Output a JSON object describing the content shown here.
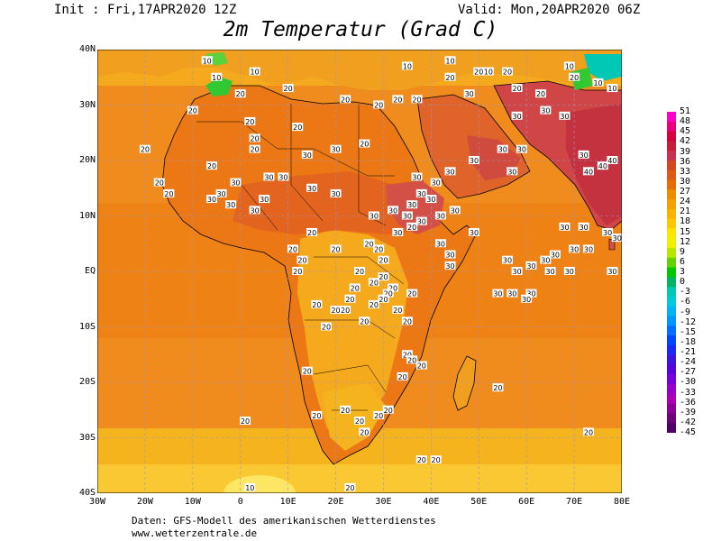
{
  "header": {
    "init": "Init : Fri,17APR2020 12Z",
    "valid": "Valid: Mon,20APR2020 06Z",
    "title": "2m Temperatur (Grad C)"
  },
  "axes": {
    "lat_labels": [
      "40N",
      "30N",
      "20N",
      "10N",
      "EQ",
      "10S",
      "20S",
      "30S",
      "40S"
    ],
    "lon_labels": [
      "30W",
      "20W",
      "10W",
      "0",
      "10E",
      "20E",
      "30E",
      "40E",
      "50E",
      "60E",
      "70E",
      "80E"
    ]
  },
  "extent": {
    "lon_min": -30,
    "lon_max": 80,
    "lat_min": -40,
    "lat_max": 40
  },
  "colorbar": {
    "labels": [
      "51",
      "48",
      "45",
      "42",
      "39",
      "36",
      "33",
      "30",
      "27",
      "24",
      "21",
      "18",
      "15",
      "12",
      "9",
      "6",
      "3",
      "0",
      "-3",
      "-6",
      "-9",
      "-12",
      "-15",
      "-18",
      "-21",
      "-24",
      "-27",
      "-30",
      "-33",
      "-36",
      "-39",
      "-42",
      "-45"
    ],
    "colors": [
      "#ff00c8",
      "#e8007a",
      "#d4003a",
      "#c41e3a",
      "#c83250",
      "#d24820",
      "#dc5a14",
      "#e66e0a",
      "#ee8c00",
      "#f4a000",
      "#f8b400",
      "#fcc800",
      "#fce600",
      "#f0f000",
      "#b4e600",
      "#64d200",
      "#00c800",
      "#00b464",
      "#00c8b4",
      "#00c8dc",
      "#00b4f0",
      "#0096ff",
      "#006eff",
      "#0046ff",
      "#1e28f0",
      "#3c14dc",
      "#5a00dc",
      "#7800dc",
      "#9600c8",
      "#aa00b4",
      "#8c0096",
      "#6e0078",
      "#500064"
    ]
  },
  "field_colors": {
    "sea_warm": "#f08c1e",
    "sea_mild": "#f5aa1e",
    "land_hot": "#eb7814",
    "land_veryhot": "#dc5a32",
    "land_mild": "#f5b41e",
    "land_cool": "#fac832",
    "cold": "#32c832",
    "veryhot": "#c8324b"
  },
  "map_labels": [
    {
      "t": "10",
      "lon": -7,
      "lat": 38
    },
    {
      "t": "10",
      "lon": -5,
      "lat": 35
    },
    {
      "t": "10",
      "lon": 3,
      "lat": 36
    },
    {
      "t": "20",
      "lon": 10,
      "lat": 33
    },
    {
      "t": "20",
      "lon": 0,
      "lat": 32
    },
    {
      "t": "20",
      "lon": -10,
      "lat": 29
    },
    {
      "t": "20",
      "lon": 2,
      "lat": 27
    },
    {
      "t": "20",
      "lon": 12,
      "lat": 26
    },
    {
      "t": "20",
      "lon": 22,
      "lat": 31
    },
    {
      "t": "20",
      "lon": 29,
      "lat": 30
    },
    {
      "t": "20",
      "lon": 33,
      "lat": 31
    },
    {
      "t": "20",
      "lon": 37,
      "lat": 31
    },
    {
      "t": "10",
      "lon": 35,
      "lat": 37
    },
    {
      "t": "10",
      "lon": 44,
      "lat": 38
    },
    {
      "t": "20",
      "lon": 44,
      "lat": 35
    },
    {
      "t": "20",
      "lon": 50,
      "lat": 36
    },
    {
      "t": "10",
      "lon": 52,
      "lat": 36
    },
    {
      "t": "20",
      "lon": 56,
      "lat": 36
    },
    {
      "t": "20",
      "lon": 58,
      "lat": 33
    },
    {
      "t": "20",
      "lon": 63,
      "lat": 32
    },
    {
      "t": "10",
      "lon": 69,
      "lat": 37
    },
    {
      "t": "20",
      "lon": 70,
      "lat": 35
    },
    {
      "t": "10",
      "lon": 75,
      "lat": 34
    },
    {
      "t": "10",
      "lon": 78,
      "lat": 33
    },
    {
      "t": "30",
      "lon": 48,
      "lat": 32
    },
    {
      "t": "30",
      "lon": 58,
      "lat": 28
    },
    {
      "t": "30",
      "lon": 64,
      "lat": 29
    },
    {
      "t": "30",
      "lon": 68,
      "lat": 28
    },
    {
      "t": "30",
      "lon": 55,
      "lat": 22
    },
    {
      "t": "30",
      "lon": 59,
      "lat": 22
    },
    {
      "t": "30",
      "lon": 49,
      "lat": 20
    },
    {
      "t": "30",
      "lon": 57,
      "lat": 18
    },
    {
      "t": "30",
      "lon": 72,
      "lat": 21
    },
    {
      "t": "40",
      "lon": 76,
      "lat": 19
    },
    {
      "t": "40",
      "lon": 73,
      "lat": 18
    },
    {
      "t": "40",
      "lon": 78,
      "lat": 20
    },
    {
      "t": "20",
      "lon": -20,
      "lat": 22
    },
    {
      "t": "20",
      "lon": -17,
      "lat": 16
    },
    {
      "t": "20",
      "lon": -15,
      "lat": 14
    },
    {
      "t": "20",
      "lon": -6,
      "lat": 19
    },
    {
      "t": "20",
      "lon": 3,
      "lat": 22
    },
    {
      "t": "20",
      "lon": 3,
      "lat": 24
    },
    {
      "t": "30",
      "lon": 14,
      "lat": 21
    },
    {
      "t": "30",
      "lon": 20,
      "lat": 22
    },
    {
      "t": "20",
      "lon": 26,
      "lat": 23
    },
    {
      "t": "30",
      "lon": -1,
      "lat": 16
    },
    {
      "t": "30",
      "lon": 6,
      "lat": 17
    },
    {
      "t": "30",
      "lon": 9,
      "lat": 17
    },
    {
      "t": "30",
      "lon": 15,
      "lat": 15
    },
    {
      "t": "30",
      "lon": -4,
      "lat": 14
    },
    {
      "t": "30",
      "lon": -6,
      "lat": 13
    },
    {
      "t": "30",
      "lon": -2,
      "lat": 12
    },
    {
      "t": "30",
      "lon": 3,
      "lat": 11
    },
    {
      "t": "30",
      "lon": 5,
      "lat": 13
    },
    {
      "t": "30",
      "lon": 20,
      "lat": 14
    },
    {
      "t": "30",
      "lon": 28,
      "lat": 10
    },
    {
      "t": "30",
      "lon": 32,
      "lat": 11
    },
    {
      "t": "30",
      "lon": 36,
      "lat": 12
    },
    {
      "t": "30",
      "lon": 38,
      "lat": 14
    },
    {
      "t": "30",
      "lon": 40,
      "lat": 13
    },
    {
      "t": "30",
      "lon": 35,
      "lat": 10
    },
    {
      "t": "30",
      "lon": 38,
      "lat": 9
    },
    {
      "t": "30",
      "lon": 42,
      "lat": 10
    },
    {
      "t": "30",
      "lon": 45,
      "lat": 11
    },
    {
      "t": "30",
      "lon": 37,
      "lat": 17
    },
    {
      "t": "30",
      "lon": 41,
      "lat": 16
    },
    {
      "t": "30",
      "lon": 44,
      "lat": 18
    },
    {
      "t": "30",
      "lon": 33,
      "lat": 7
    },
    {
      "t": "20",
      "lon": 36,
      "lat": 8
    },
    {
      "t": "30",
      "lon": 42,
      "lat": 5
    },
    {
      "t": "30",
      "lon": 44,
      "lat": 3
    },
    {
      "t": "30",
      "lon": 44,
      "lat": 1
    },
    {
      "t": "30",
      "lon": 49,
      "lat": 7
    },
    {
      "t": "20",
      "lon": 15,
      "lat": 7
    },
    {
      "t": "20",
      "lon": 11,
      "lat": 4
    },
    {
      "t": "20",
      "lon": 13,
      "lat": 2
    },
    {
      "t": "20",
      "lon": 12,
      "lat": 0
    },
    {
      "t": "20",
      "lon": 20,
      "lat": 4
    },
    {
      "t": "20",
      "lon": 27,
      "lat": 5
    },
    {
      "t": "20",
      "lon": 29,
      "lat": 4
    },
    {
      "t": "20",
      "lon": 30,
      "lat": 2
    },
    {
      "t": "20",
      "lon": 25,
      "lat": 0
    },
    {
      "t": "20",
      "lon": 28,
      "lat": -2
    },
    {
      "t": "20",
      "lon": 30,
      "lat": -1
    },
    {
      "t": "20",
      "lon": 32,
      "lat": -3
    },
    {
      "t": "20",
      "lon": 31,
      "lat": -4
    },
    {
      "t": "20",
      "lon": 36,
      "lat": -4
    },
    {
      "t": "20",
      "lon": 24,
      "lat": -3
    },
    {
      "t": "20",
      "lon": 23,
      "lat": -5
    },
    {
      "t": "20",
      "lon": 22,
      "lat": -7
    },
    {
      "t": "20",
      "lon": 20,
      "lat": -7
    },
    {
      "t": "20",
      "lon": 16,
      "lat": -6
    },
    {
      "t": "20",
      "lon": 30,
      "lat": -5
    },
    {
      "t": "20",
      "lon": 28,
      "lat": -6
    },
    {
      "t": "20",
      "lon": 33,
      "lat": -7
    },
    {
      "t": "20",
      "lon": 18,
      "lat": -10
    },
    {
      "t": "20",
      "lon": 26,
      "lat": -9
    },
    {
      "t": "20",
      "lon": 35,
      "lat": -9
    },
    {
      "t": "20",
      "lon": 14,
      "lat": -18
    },
    {
      "t": "20",
      "lon": 35,
      "lat": -15
    },
    {
      "t": "20",
      "lon": 36,
      "lat": -16
    },
    {
      "t": "20",
      "lon": 38,
      "lat": -17
    },
    {
      "t": "20",
      "lon": 34,
      "lat": -19
    },
    {
      "t": "20",
      "lon": 16,
      "lat": -26
    },
    {
      "t": "20",
      "lon": 22,
      "lat": -25
    },
    {
      "t": "20",
      "lon": 25,
      "lat": -27
    },
    {
      "t": "20",
      "lon": 29,
      "lat": -26
    },
    {
      "t": "20",
      "lon": 31,
      "lat": -25
    },
    {
      "t": "20",
      "lon": 26,
      "lat": -29
    },
    {
      "t": "20",
      "lon": 23,
      "lat": -39
    },
    {
      "t": "20",
      "lon": 38,
      "lat": -34
    },
    {
      "t": "20",
      "lon": 41,
      "lat": -34
    },
    {
      "t": "20",
      "lon": 1,
      "lat": -27
    },
    {
      "t": "10",
      "lon": 2,
      "lat": -39
    },
    {
      "t": "20",
      "lon": 54,
      "lat": -21
    },
    {
      "t": "20",
      "lon": 73,
      "lat": -29
    },
    {
      "t": "30",
      "lon": 61,
      "lat": 1
    },
    {
      "t": "30",
      "lon": 64,
      "lat": 2
    },
    {
      "t": "30",
      "lon": 65,
      "lat": 0
    },
    {
      "t": "30",
      "lon": 69,
      "lat": 0
    },
    {
      "t": "30",
      "lon": 66,
      "lat": 3
    },
    {
      "t": "30",
      "lon": 70,
      "lat": 4
    },
    {
      "t": "30",
      "lon": 78,
      "lat": 0
    },
    {
      "t": "30",
      "lon": 56,
      "lat": 2
    },
    {
      "t": "30",
      "lon": 58,
      "lat": 0
    },
    {
      "t": "30",
      "lon": 54,
      "lat": -4
    },
    {
      "t": "30",
      "lon": 57,
      "lat": -4
    },
    {
      "t": "30",
      "lon": 61,
      "lat": -4
    },
    {
      "t": "30",
      "lon": 60,
      "lat": -5
    },
    {
      "t": "30",
      "lon": 68,
      "lat": 8
    },
    {
      "t": "30",
      "lon": 72,
      "lat": 8
    },
    {
      "t": "30",
      "lon": 77,
      "lat": 7
    },
    {
      "t": "30",
      "lon": 79,
      "lat": 6
    },
    {
      "t": "30",
      "lon": 73,
      "lat": 4
    }
  ],
  "footer": {
    "line1": "Daten: GFS-Modell des amerikanischen Wetterdienstes",
    "line2": "www.wetterzentrale.de"
  }
}
